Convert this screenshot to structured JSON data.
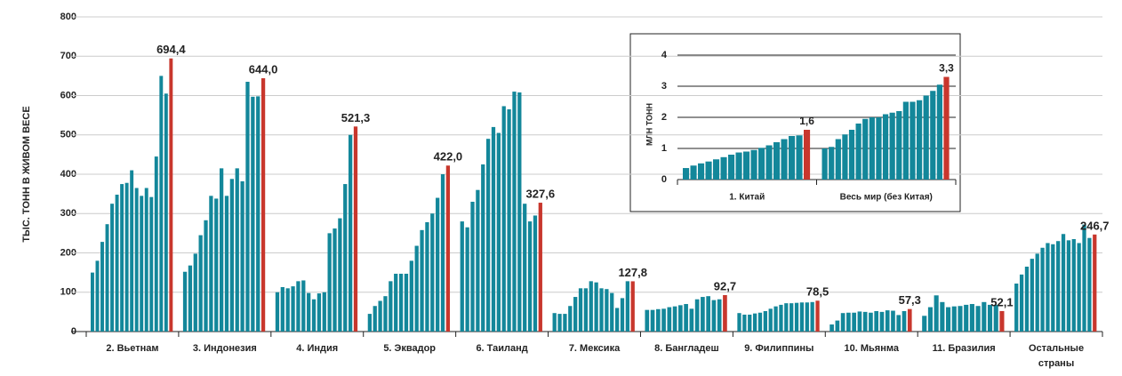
{
  "chart_data": [
    {
      "type": "grouped-bar",
      "y_label": "ТЫС. ТОНН В ЖИВОМ ВЕСЕ",
      "ylim": [
        0,
        800
      ],
      "yticks": [
        0,
        100,
        200,
        300,
        400,
        500,
        600,
        700,
        800
      ],
      "grid": true,
      "color": "#13879a",
      "highlight_color": "#c8372d",
      "groups": [
        {
          "name": "2. Вьетнам",
          "values": [
            150,
            180,
            228,
            273,
            325,
            348,
            375,
            378,
            410,
            365,
            345,
            365,
            342,
            445,
            650,
            605,
            694.4
          ],
          "value_label": "694,4"
        },
        {
          "name": "3. Индонезия",
          "values": [
            152,
            168,
            198,
            245,
            283,
            345,
            338,
            415,
            345,
            388,
            415,
            382,
            635,
            597,
            598,
            644.0
          ],
          "value_label": "644,0"
        },
        {
          "name": "4. Индия",
          "values": [
            100,
            113,
            110,
            115,
            128,
            130,
            98,
            82,
            97,
            100,
            250,
            262,
            288,
            375,
            500,
            521.3
          ],
          "value_label": "521,3"
        },
        {
          "name": "5. Эквадор",
          "values": [
            45,
            65,
            78,
            90,
            128,
            147,
            147,
            147,
            180,
            218,
            258,
            278,
            300,
            340,
            400,
            422.0
          ],
          "value_label": "422,0"
        },
        {
          "name": "6. Таиланд",
          "values": [
            280,
            265,
            330,
            360,
            425,
            490,
            520,
            505,
            573,
            565,
            610,
            608,
            325,
            280,
            295,
            327.6
          ],
          "value_label": "327,6"
        },
        {
          "name": "7. Мексика",
          "values": [
            47,
            45,
            45,
            65,
            88,
            110,
            110,
            128,
            125,
            110,
            108,
            98,
            60,
            85,
            128,
            127.8
          ],
          "value_label": "127,8"
        },
        {
          "name": "8. Бангладеш",
          "values": [
            55,
            55,
            57,
            58,
            62,
            64,
            67,
            70,
            58,
            82,
            88,
            90,
            80,
            82,
            92.7
          ],
          "value_label": "92,7"
        },
        {
          "name": "9. Филиппины",
          "values": [
            47,
            43,
            43,
            46,
            48,
            52,
            58,
            64,
            68,
            72,
            72,
            73,
            74,
            74,
            75,
            78.5
          ],
          "value_label": "78,5"
        },
        {
          "name": "10. Мьянма",
          "values": [
            18,
            28,
            47,
            48,
            48,
            51,
            50,
            48,
            52,
            50,
            54,
            53,
            42,
            52,
            57.3
          ],
          "value_label": "57,3"
        },
        {
          "name": "11. Бразилия",
          "values": [
            40,
            62,
            92,
            75,
            62,
            64,
            65,
            68,
            70,
            65,
            75,
            68,
            68,
            52.1
          ],
          "value_label": "52,1"
        },
        {
          "name": "Остальные страны",
          "values": [
            122,
            145,
            165,
            185,
            198,
            213,
            225,
            222,
            230,
            248,
            232,
            235,
            225,
            272,
            238,
            246.7
          ],
          "value_label": "246,7"
        }
      ]
    },
    {
      "type": "grouped-bar",
      "y_label": "МЛН ТОНН",
      "ylim": [
        0,
        4
      ],
      "yticks": [
        0,
        1,
        2,
        3,
        4
      ],
      "grid": true,
      "color": "#13879a",
      "highlight_color": "#c8372d",
      "groups": [
        {
          "name": "1. Китай",
          "values": [
            0.37,
            0.45,
            0.52,
            0.58,
            0.65,
            0.72,
            0.8,
            0.87,
            0.9,
            0.95,
            1.02,
            1.1,
            1.2,
            1.3,
            1.4,
            1.42,
            1.6
          ],
          "value_label": "1,6"
        },
        {
          "name": "Весь мир (без Китая)",
          "values": [
            1.0,
            1.05,
            1.3,
            1.45,
            1.6,
            1.8,
            1.95,
            2.0,
            2.0,
            2.1,
            2.15,
            2.2,
            2.5,
            2.5,
            2.55,
            2.7,
            2.85,
            3.05,
            3.3
          ],
          "value_label": "3,3"
        }
      ]
    }
  ]
}
